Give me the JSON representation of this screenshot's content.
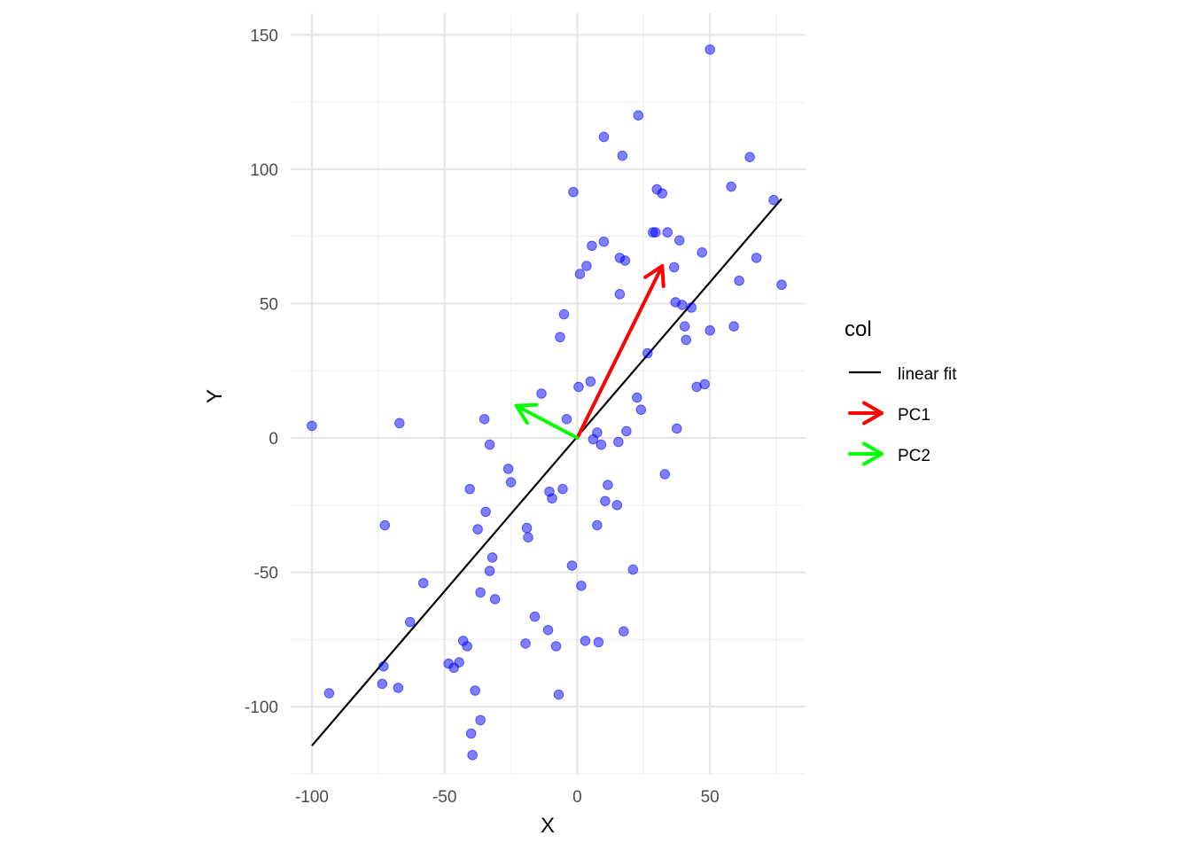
{
  "chart_data": {
    "type": "scatter",
    "xlabel": "X",
    "ylabel": "Y",
    "xlim": [
      -108,
      86
    ],
    "ylim": [
      -125,
      158
    ],
    "x_ticks": [
      -100,
      -50,
      0,
      50
    ],
    "y_ticks": [
      -100,
      -50,
      0,
      50,
      100,
      150
    ],
    "x_tick_labels": [
      "-100",
      "-50",
      "0",
      "50"
    ],
    "y_tick_labels": [
      "-100",
      "-50",
      "0",
      "50",
      "100",
      "150"
    ],
    "grid": true,
    "point_color": "#0000ff",
    "points": [
      {
        "x": -100,
        "y": 4.5
      },
      {
        "x": -93.5,
        "y": -95
      },
      {
        "x": -73,
        "y": -85
      },
      {
        "x": -73.5,
        "y": -91.5
      },
      {
        "x": -72.5,
        "y": -32.5
      },
      {
        "x": -67,
        "y": 5.5
      },
      {
        "x": -67.5,
        "y": -93
      },
      {
        "x": -63,
        "y": -68.5
      },
      {
        "x": -58,
        "y": -54
      },
      {
        "x": -48.5,
        "y": -84
      },
      {
        "x": -46.5,
        "y": -85.5
      },
      {
        "x": -44.5,
        "y": -83.5
      },
      {
        "x": -43,
        "y": -75.5
      },
      {
        "x": -41.5,
        "y": -77.5
      },
      {
        "x": -40.5,
        "y": -19
      },
      {
        "x": -40,
        "y": -110
      },
      {
        "x": -39.5,
        "y": -118
      },
      {
        "x": -38.5,
        "y": -94
      },
      {
        "x": -37.5,
        "y": -34
      },
      {
        "x": -36.5,
        "y": -105
      },
      {
        "x": -36.5,
        "y": -57.5
      },
      {
        "x": -35,
        "y": 7
      },
      {
        "x": -34.5,
        "y": -27.5
      },
      {
        "x": -33,
        "y": -49.5
      },
      {
        "x": -33,
        "y": -2.5
      },
      {
        "x": -32,
        "y": -44.5
      },
      {
        "x": -31,
        "y": -60
      },
      {
        "x": -26,
        "y": -11.5
      },
      {
        "x": -25,
        "y": -16.5
      },
      {
        "x": -19.5,
        "y": -76.5
      },
      {
        "x": -19,
        "y": -33.5
      },
      {
        "x": -18.5,
        "y": -37
      },
      {
        "x": -16,
        "y": -66.5
      },
      {
        "x": -13.5,
        "y": 16.5
      },
      {
        "x": -11,
        "y": -71.5
      },
      {
        "x": -10.5,
        "y": -20
      },
      {
        "x": -9.5,
        "y": -22.5
      },
      {
        "x": -8,
        "y": -77.5
      },
      {
        "x": -7,
        "y": -95.5
      },
      {
        "x": -6.5,
        "y": 37.5
      },
      {
        "x": -5.5,
        "y": -19
      },
      {
        "x": -5,
        "y": 46
      },
      {
        "x": -4,
        "y": 7
      },
      {
        "x": -2,
        "y": -47.5
      },
      {
        "x": -1.5,
        "y": 91.5
      },
      {
        "x": 0.5,
        "y": 19
      },
      {
        "x": 1,
        "y": 61
      },
      {
        "x": 1.5,
        "y": -55
      },
      {
        "x": 3,
        "y": -75.5
      },
      {
        "x": 3.5,
        "y": 64
      },
      {
        "x": 5,
        "y": 21
      },
      {
        "x": 5.5,
        "y": 71.5
      },
      {
        "x": 6,
        "y": -0.5
      },
      {
        "x": 7.5,
        "y": 2
      },
      {
        "x": 7.5,
        "y": -32.5
      },
      {
        "x": 8,
        "y": -76
      },
      {
        "x": 9,
        "y": -2.5
      },
      {
        "x": 10,
        "y": 112
      },
      {
        "x": 10,
        "y": 73
      },
      {
        "x": 10.5,
        "y": -23.5
      },
      {
        "x": 11.5,
        "y": -17.5
      },
      {
        "x": 15,
        "y": -25
      },
      {
        "x": 15.5,
        "y": -1.5
      },
      {
        "x": 16,
        "y": 53.5
      },
      {
        "x": 16,
        "y": 67
      },
      {
        "x": 17,
        "y": 105
      },
      {
        "x": 17.5,
        "y": -72
      },
      {
        "x": 18,
        "y": 66
      },
      {
        "x": 18.5,
        "y": 2.5
      },
      {
        "x": 21,
        "y": -49
      },
      {
        "x": 22.5,
        "y": 15
      },
      {
        "x": 23,
        "y": 120
      },
      {
        "x": 24,
        "y": 10.5
      },
      {
        "x": 26.5,
        "y": 31.5
      },
      {
        "x": 28.5,
        "y": 76.5
      },
      {
        "x": 29.5,
        "y": 76.5
      },
      {
        "x": 30,
        "y": 92.5
      },
      {
        "x": 32,
        "y": 91
      },
      {
        "x": 33,
        "y": -13.5
      },
      {
        "x": 34,
        "y": 76.5
      },
      {
        "x": 36.5,
        "y": 63.5
      },
      {
        "x": 37,
        "y": 50.5
      },
      {
        "x": 37.5,
        "y": 3.5
      },
      {
        "x": 38.5,
        "y": 73.5
      },
      {
        "x": 39.5,
        "y": 49.5
      },
      {
        "x": 40.5,
        "y": 41.5
      },
      {
        "x": 41,
        "y": 36.5
      },
      {
        "x": 43,
        "y": 48.5
      },
      {
        "x": 45,
        "y": 19
      },
      {
        "x": 47,
        "y": 69
      },
      {
        "x": 48,
        "y": 20
      },
      {
        "x": 50,
        "y": 144.5
      },
      {
        "x": 50,
        "y": 40
      },
      {
        "x": 58,
        "y": 93.5
      },
      {
        "x": 59,
        "y": 41.5
      },
      {
        "x": 61,
        "y": 58.5
      },
      {
        "x": 65,
        "y": 104.5
      },
      {
        "x": 67.5,
        "y": 67
      },
      {
        "x": 74,
        "y": 88.5
      },
      {
        "x": 77,
        "y": 57
      }
    ],
    "series": [
      {
        "name": "linear fit",
        "type": "line",
        "color": "#000000",
        "x": [
          -100,
          77
        ],
        "y": [
          -114.5,
          89
        ]
      },
      {
        "name": "PC1",
        "type": "arrow",
        "color": "#ff0000",
        "from": [
          0,
          0
        ],
        "to": [
          32,
          64
        ]
      },
      {
        "name": "PC2",
        "type": "arrow",
        "color": "#00ff00",
        "from": [
          0,
          0
        ],
        "to": [
          -23,
          12
        ]
      }
    ],
    "legend": {
      "title": "col",
      "position": "right",
      "items": [
        {
          "label": "linear fit",
          "color": "#000000",
          "key": "line"
        },
        {
          "label": "PC1",
          "color": "#ff0000",
          "key": "arrow"
        },
        {
          "label": "PC2",
          "color": "#00ff00",
          "key": "arrow"
        }
      ]
    }
  }
}
